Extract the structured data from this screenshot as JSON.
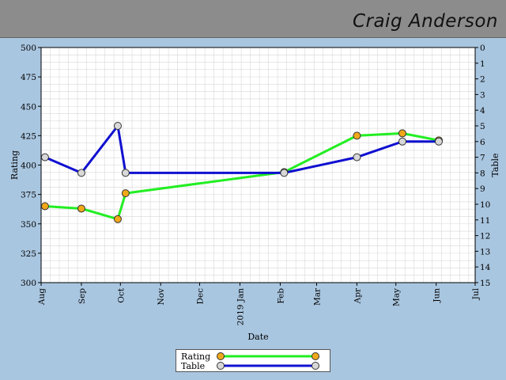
{
  "header": {
    "name": "Craig Anderson"
  },
  "colors": {
    "background": "#a9c6e0",
    "plot_bg": "#ffffff",
    "grid": "#d8d8d8",
    "rating_line": "#22ee22",
    "rating_marker": "#f0a81a",
    "table_line": "#1010d0",
    "table_marker": "#d8d8d8"
  },
  "legend": {
    "items": [
      {
        "label": "Rating"
      },
      {
        "label": "Table"
      }
    ]
  },
  "chart_data": {
    "type": "line",
    "xlabel": "Date",
    "ylabel_left": "Rating",
    "ylabel_right": "Table",
    "x_ticks": [
      {
        "label": "Aug",
        "date": "2018-08-01"
      },
      {
        "label": "Sep",
        "date": "2018-09-01"
      },
      {
        "label": "Oct",
        "date": "2018-10-01"
      },
      {
        "label": "Nov",
        "date": "2018-11-01"
      },
      {
        "label": "Dec",
        "date": "2018-12-01"
      },
      {
        "label": "2019 Jan",
        "date": "2019-01-01"
      },
      {
        "label": "Feb",
        "date": "2019-02-01"
      },
      {
        "label": "Mar",
        "date": "2019-03-01"
      },
      {
        "label": "Apr",
        "date": "2019-04-01"
      },
      {
        "label": "May",
        "date": "2019-05-01"
      },
      {
        "label": "Jun",
        "date": "2019-06-01"
      },
      {
        "label": "Jul",
        "date": "2019-07-01"
      }
    ],
    "xlim": [
      "2018-08-01",
      "2019-07-01"
    ],
    "ylim_left": [
      300,
      500
    ],
    "yticks_left": [
      300,
      325,
      350,
      375,
      400,
      425,
      450,
      475,
      500
    ],
    "ylim_right": [
      15,
      0
    ],
    "yticks_right": [
      0,
      1,
      2,
      3,
      4,
      5,
      6,
      7,
      8,
      9,
      10,
      11,
      12,
      13,
      14,
      15
    ],
    "grid": true,
    "legend_position": "bottom-center",
    "series": [
      {
        "name": "Rating",
        "axis": "left",
        "points": [
          {
            "x": "2018-08-04",
            "y": 365
          },
          {
            "x": "2018-09-01",
            "y": 363
          },
          {
            "x": "2018-09-29",
            "y": 354
          },
          {
            "x": "2018-10-05",
            "y": 376
          },
          {
            "x": "2019-02-04",
            "y": 394
          },
          {
            "x": "2019-04-01",
            "y": 425
          },
          {
            "x": "2019-05-06",
            "y": 427
          },
          {
            "x": "2019-06-03",
            "y": 421
          }
        ]
      },
      {
        "name": "Table",
        "axis": "right",
        "points": [
          {
            "x": "2018-08-04",
            "y": 7
          },
          {
            "x": "2018-09-01",
            "y": 8
          },
          {
            "x": "2018-09-29",
            "y": 5
          },
          {
            "x": "2018-10-05",
            "y": 8
          },
          {
            "x": "2019-02-04",
            "y": 8
          },
          {
            "x": "2019-04-01",
            "y": 7
          },
          {
            "x": "2019-05-06",
            "y": 6
          },
          {
            "x": "2019-06-03",
            "y": 6
          }
        ]
      }
    ]
  }
}
